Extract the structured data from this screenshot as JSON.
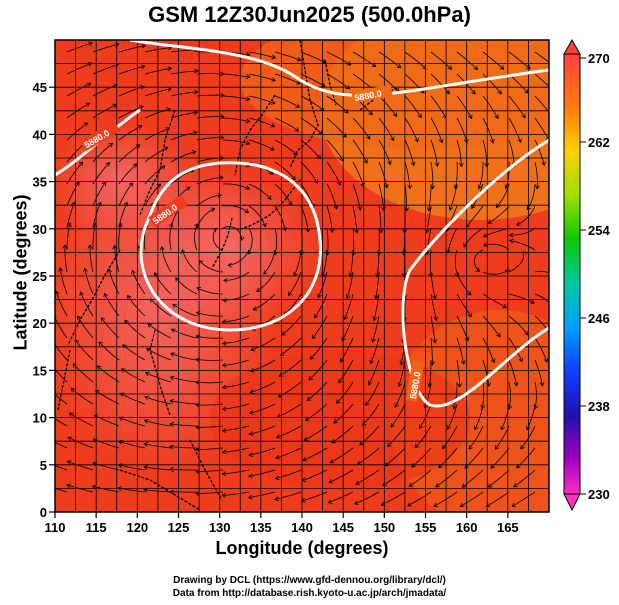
{
  "title": "GSM 12Z30Jun2025 (500.0hPa)",
  "x_axis": {
    "label": "Longitude (degrees)",
    "min": 110,
    "max": 170,
    "ticks": [
      "110",
      "115",
      "120",
      "125",
      "130",
      "135",
      "140",
      "145",
      "150",
      "155",
      "160",
      "165"
    ]
  },
  "y_axis": {
    "label": "Latitude  (degrees)",
    "min": 0,
    "max": 50,
    "ticks": [
      "0",
      "5",
      "10",
      "15",
      "20",
      "25",
      "30",
      "35",
      "40",
      "45"
    ]
  },
  "colorbar": {
    "min": 230,
    "max": 270,
    "labels": [
      "270",
      "262",
      "254",
      "246",
      "238",
      "230"
    ]
  },
  "contour_labels": [
    "5880.0",
    "5880.0",
    "5880.0",
    "5880.0"
  ],
  "credits": {
    "line1": "Drawing by DCL (https://www.gfd-dennou.org/library/dcl/)",
    "line2": "Data from http://database.rish.kyoto-u.ac.jp/arch/jmadata/"
  },
  "chart_data": {
    "type": "heatmap",
    "field": "temperature (K) at 500.0hPa with streamlines",
    "title": "GSM 12Z30Jun2025 (500.0hPa)",
    "xlabel": "Longitude (degrees)",
    "ylabel": "Latitude  (degrees)",
    "xlim": [
      110,
      170
    ],
    "ylim": [
      0,
      50
    ],
    "colorbar_range": [
      230,
      270
    ],
    "contour_level": 5880.0,
    "high_center": {
      "lon": 131,
      "lat": 29
    }
  },
  "colors": {
    "warm": "#ee3a1e",
    "hot": "#f25a5a",
    "orange": "#f07818",
    "contour": "#ffffff"
  }
}
